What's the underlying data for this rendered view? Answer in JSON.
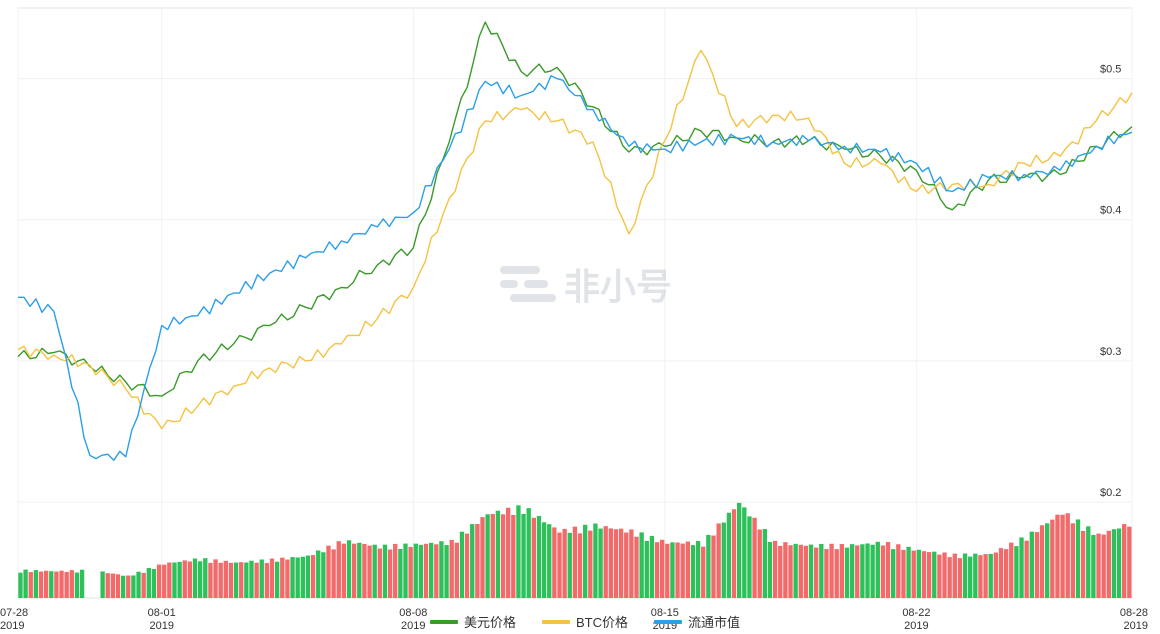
{
  "chart_data": {
    "type": "line",
    "y_ticks": [
      "$0.5",
      "$0.4",
      "$0.3",
      "$0.2"
    ],
    "y_tick_values": [
      0.5,
      0.4,
      0.3,
      0.2
    ],
    "ylim": [
      0.2,
      0.55
    ],
    "x_ticks": [
      {
        "date": "07-28",
        "year": "2019"
      },
      {
        "date": "08-01",
        "year": "2019"
      },
      {
        "date": "08-08",
        "year": "2019"
      },
      {
        "date": "08-15",
        "year": "2019"
      },
      {
        "date": "08-22",
        "year": "2019"
      },
      {
        "date": "08-28",
        "year": "2019"
      }
    ],
    "x": [
      "07-28",
      "07-29",
      "07-30",
      "07-31",
      "08-01",
      "08-02",
      "08-03",
      "08-04",
      "08-05",
      "08-06",
      "08-07",
      "08-08",
      "08-09",
      "08-10",
      "08-11",
      "08-12",
      "08-13",
      "08-14",
      "08-15",
      "08-16",
      "08-17",
      "08-18",
      "08-19",
      "08-20",
      "08-21",
      "08-22",
      "08-23",
      "08-24",
      "08-25",
      "08-26",
      "08-27",
      "08-28"
    ],
    "series": [
      {
        "name": "美元价格",
        "color": "#3a9a2a",
        "values": [
          0.303,
          0.306,
          0.296,
          0.285,
          0.275,
          0.3,
          0.312,
          0.325,
          0.338,
          0.352,
          0.368,
          0.38,
          0.455,
          0.54,
          0.505,
          0.508,
          0.48,
          0.448,
          0.452,
          0.463,
          0.458,
          0.455,
          0.456,
          0.45,
          0.445,
          0.435,
          0.407,
          0.428,
          0.43,
          0.432,
          0.452,
          0.466
        ]
      },
      {
        "name": "BTC价格",
        "color": "#f5c242",
        "values": [
          0.308,
          0.304,
          0.297,
          0.28,
          0.252,
          0.268,
          0.282,
          0.295,
          0.3,
          0.312,
          0.33,
          0.352,
          0.415,
          0.47,
          0.478,
          0.47,
          0.455,
          0.39,
          0.456,
          0.52,
          0.466,
          0.474,
          0.472,
          0.44,
          0.44,
          0.42,
          0.425,
          0.425,
          0.44,
          0.445,
          0.47,
          0.49
        ]
      },
      {
        "name": "流通市值",
        "color": "#2b9fe8",
        "values": [
          0.345,
          0.335,
          0.233,
          0.232,
          0.325,
          0.332,
          0.348,
          0.362,
          0.373,
          0.385,
          0.395,
          0.405,
          0.45,
          0.498,
          0.488,
          0.5,
          0.478,
          0.452,
          0.45,
          0.455,
          0.458,
          0.455,
          0.456,
          0.452,
          0.448,
          0.44,
          0.42,
          0.43,
          0.432,
          0.435,
          0.452,
          0.462
        ]
      }
    ],
    "volume": [
      0.29,
      0.28,
      0.29,
      0.23,
      0.36,
      0.41,
      0.37,
      0.4,
      0.44,
      0.6,
      0.54,
      0.56,
      0.59,
      0.88,
      0.95,
      0.7,
      0.76,
      0.7,
      0.58,
      0.58,
      1.0,
      0.58,
      0.55,
      0.55,
      0.58,
      0.5,
      0.45,
      0.46,
      0.64,
      0.9,
      0.66,
      0.8
    ],
    "volume_colors": {
      "up": "#2ec05a",
      "down": "#f26a6a"
    },
    "grid": true,
    "legend_position": "bottom-center"
  },
  "legend": [
    {
      "label": "美元价格",
      "color": "#3a9a2a"
    },
    {
      "label": "BTC价格",
      "color": "#f5c242"
    },
    {
      "label": "流通市值",
      "color": "#2b9fe8"
    }
  ],
  "watermark": {
    "text": "非小号"
  }
}
